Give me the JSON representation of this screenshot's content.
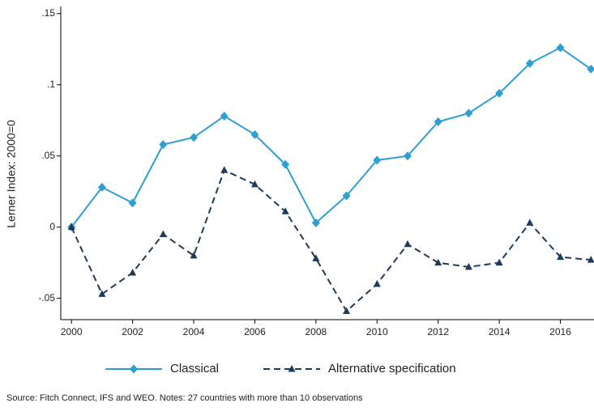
{
  "chart_data": {
    "type": "line",
    "x": [
      2000,
      2001,
      2002,
      2003,
      2004,
      2005,
      2006,
      2007,
      2008,
      2009,
      2010,
      2011,
      2012,
      2013,
      2014,
      2015,
      2016,
      2017
    ],
    "series": [
      {
        "name": "Classical",
        "color": "#2e9fd0",
        "marker": "diamond",
        "dashed": false,
        "values": [
          0,
          0.028,
          0.017,
          0.058,
          0.063,
          0.078,
          0.065,
          0.044,
          0.003,
          0.022,
          0.047,
          0.05,
          0.074,
          0.08,
          0.094,
          0.115,
          0.126,
          0.111
        ]
      },
      {
        "name": "Alternative specification",
        "color": "#1f3b5c",
        "marker": "triangle",
        "dashed": true,
        "values": [
          0,
          -0.047,
          -0.032,
          -0.005,
          -0.02,
          0.04,
          0.03,
          0.011,
          -0.022,
          -0.059,
          -0.04,
          -0.012,
          -0.025,
          -0.028,
          -0.025,
          0.003,
          -0.021,
          -0.023
        ]
      }
    ],
    "y_label": "Lerner Index: 2000=0",
    "xlim": [
      1999.65,
      2017.1
    ],
    "ylim": [
      -0.065,
      0.155
    ],
    "xticks": [
      2000,
      2002,
      2004,
      2006,
      2008,
      2010,
      2012,
      2014,
      2016
    ],
    "yticks": [
      {
        "value": -0.05,
        "label": "-.05"
      },
      0,
      {
        "value": 0.05,
        "label": ".05"
      },
      {
        "value": 0.1,
        "label": ".1"
      },
      {
        "value": 0.15,
        "label": ".15"
      }
    ],
    "legend": "bottom",
    "source": "Source: Fitch Connect, IFS and WEO. Notes: 27  countries with more than 10 observations"
  }
}
